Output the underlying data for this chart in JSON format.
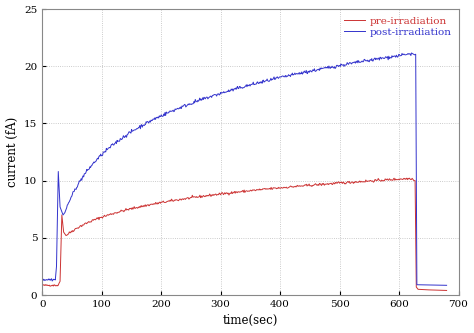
{
  "title": "",
  "xlabel": "time(sec)",
  "ylabel": "current (fA)",
  "xlim": [
    0,
    700
  ],
  "ylim": [
    0,
    25
  ],
  "xticks": [
    0,
    100,
    200,
    300,
    400,
    500,
    600,
    700
  ],
  "yticks": [
    0,
    5,
    10,
    15,
    20,
    25
  ],
  "bg_color": "#ffffff",
  "plot_bg_color": "#ffffff",
  "grid_color": "#bbbbbb",
  "pre_color": "#cc3333",
  "post_color": "#3333cc",
  "pre_label": "pre-irradiation",
  "post_label": "post-irradiation",
  "figsize": [
    4.74,
    3.33
  ],
  "dpi": 100
}
